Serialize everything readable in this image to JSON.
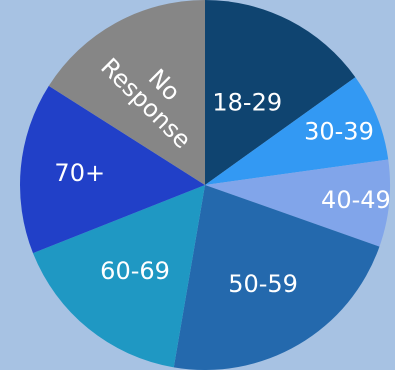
{
  "chart_data": {
    "type": "pie",
    "categories": [
      "18-29",
      "30-39",
      "40-49",
      "50-59",
      "60-69",
      "70+",
      "No Response"
    ],
    "values": [
      15.1,
      7.7,
      7.6,
      22.3,
      16.3,
      15.0,
      16.0
    ],
    "colors": [
      "#0f4470",
      "#3399f3",
      "#81a5ea",
      "#2469ad",
      "#1f98c3",
      "#2140c8",
      "#868686"
    ],
    "start_angle_deg": 0,
    "direction": "clockwise",
    "labels_on_slices": true,
    "label_color": "#ffffff",
    "background": "#a7c2e3",
    "grid": false,
    "legend": "none"
  }
}
